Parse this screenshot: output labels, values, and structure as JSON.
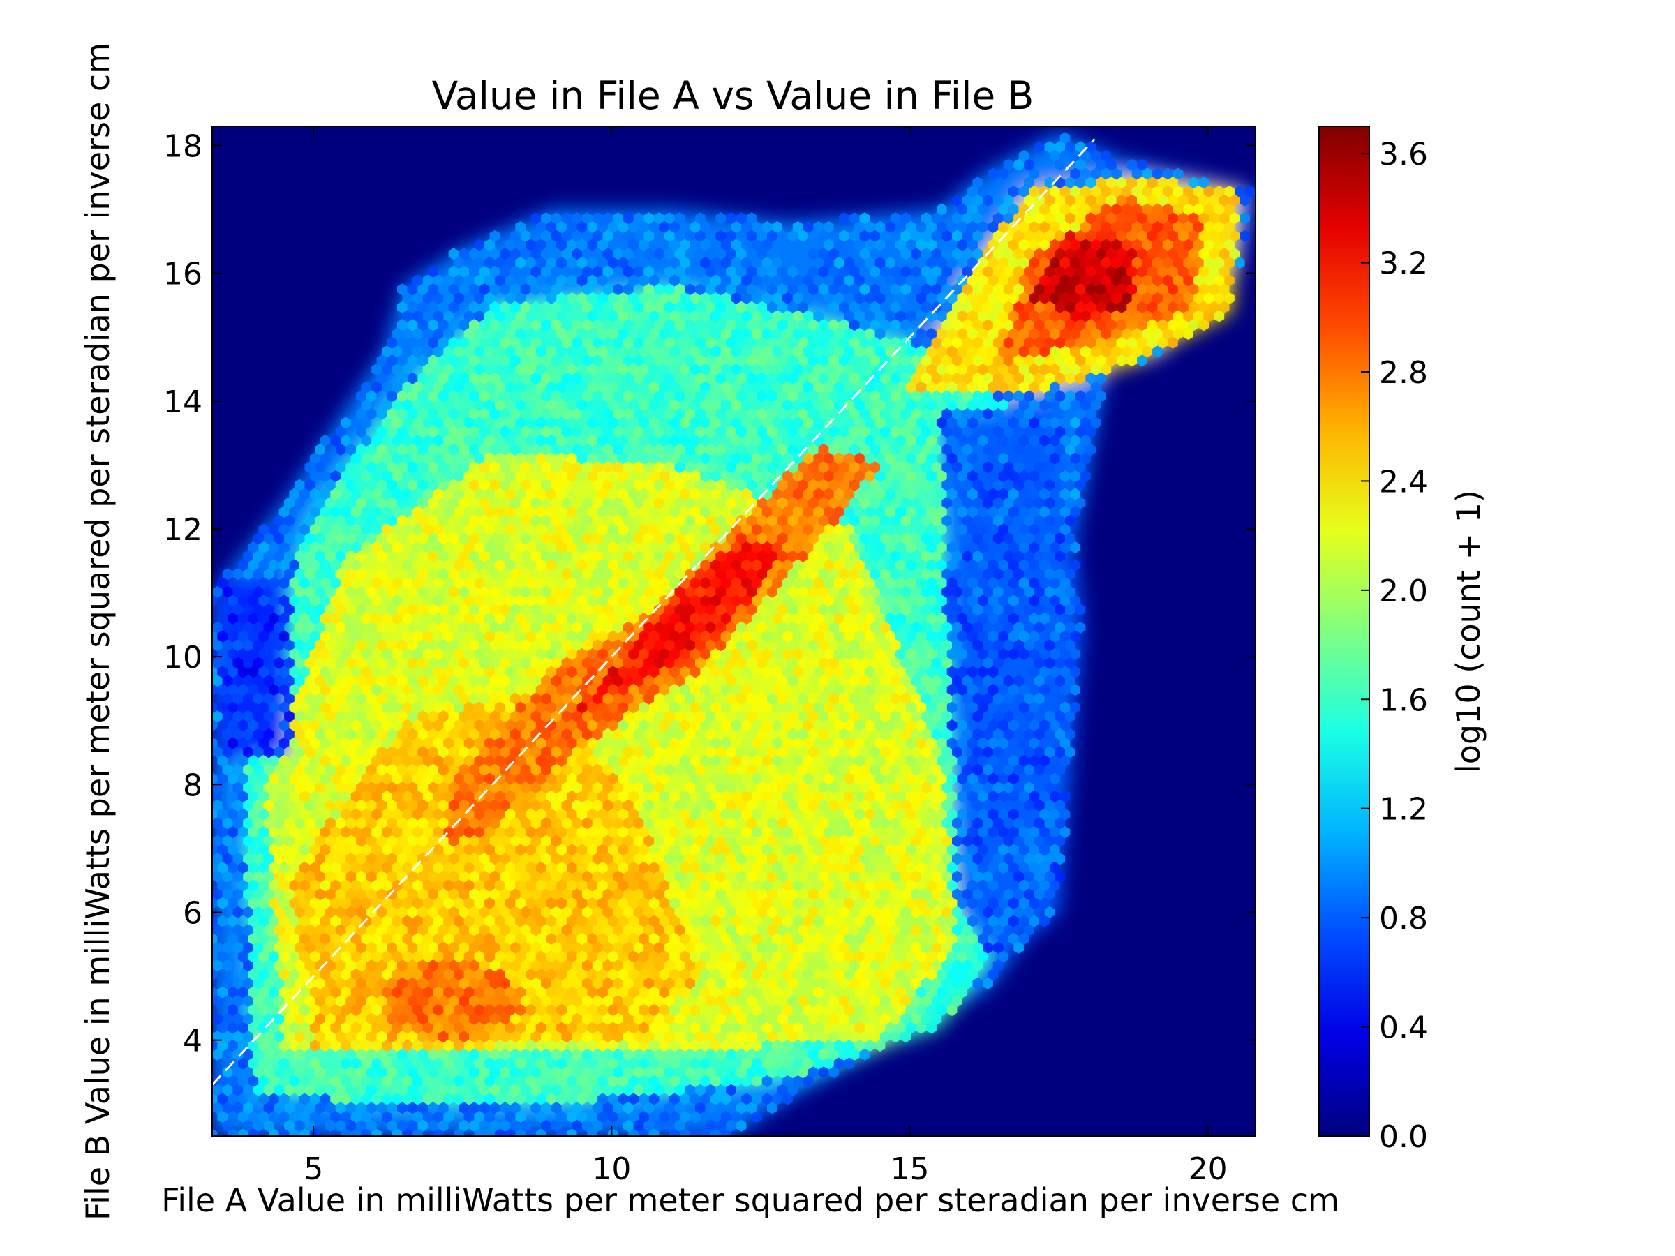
{
  "chart_data": {
    "type": "heatmap",
    "subtype": "hexbin",
    "title": "Value in File A vs Value in File B",
    "xlabel": "File A Value in milliWatts per meter squared per steradian per inverse cm",
    "ylabel": "File B Value in milliWatts per meter squared per steradian per inverse cm",
    "xlim": [
      3.3,
      20.8
    ],
    "ylim": [
      2.5,
      18.3
    ],
    "x_ticks": [
      5,
      10,
      15,
      20
    ],
    "x_tick_labels": [
      "5",
      "10",
      "15",
      "20"
    ],
    "y_ticks": [
      4,
      6,
      8,
      10,
      12,
      14,
      16,
      18
    ],
    "y_tick_labels": [
      "4",
      "6",
      "8",
      "10",
      "12",
      "14",
      "16",
      "18"
    ],
    "background_color": "#00007f",
    "colormap": "jet",
    "colorbar": {
      "label": "log10 (count + 1)",
      "range": [
        0.0,
        3.7
      ],
      "ticks": [
        0.0,
        0.4,
        0.8,
        1.2,
        1.6,
        2.0,
        2.4,
        2.8,
        3.2,
        3.6
      ],
      "tick_labels": [
        "0.0",
        "0.4",
        "0.8",
        "1.2",
        "1.6",
        "2.0",
        "2.4",
        "2.8",
        "3.2",
        "3.6"
      ]
    },
    "reference_line": {
      "type": "y = x",
      "style": "dashed",
      "color": "#ffffff",
      "x_range": [
        3.3,
        18.1
      ]
    },
    "density_regions": [
      {
        "region": "overall data footprint",
        "polygon": [
          [
            3.3,
            2.5
          ],
          [
            3.3,
            11.0
          ],
          [
            4.5,
            12.4
          ],
          [
            6.2,
            14.8
          ],
          [
            6.5,
            15.8
          ],
          [
            7.5,
            16.4
          ],
          [
            9.0,
            17.0
          ],
          [
            11.0,
            17.0
          ],
          [
            13.0,
            16.8
          ],
          [
            15.5,
            17.0
          ],
          [
            16.3,
            17.6
          ],
          [
            17.5,
            18.2
          ],
          [
            18.5,
            17.8
          ],
          [
            20.8,
            17.3
          ],
          [
            20.5,
            16.0
          ],
          [
            19.2,
            14.7
          ],
          [
            18.3,
            14.5
          ],
          [
            17.8,
            12.0
          ],
          [
            17.6,
            8.5
          ],
          [
            17.3,
            6.0
          ],
          [
            16.3,
            4.8
          ],
          [
            13.0,
            3.1
          ],
          [
            12.0,
            2.5
          ]
        ],
        "log10_count": 0.9
      },
      {
        "region": "broad background",
        "polygon": [
          [
            4.0,
            3.2
          ],
          [
            3.8,
            9.0
          ],
          [
            5.0,
            12.2
          ],
          [
            6.5,
            14.2
          ],
          [
            8.0,
            15.5
          ],
          [
            11.0,
            15.8
          ],
          [
            13.5,
            15.3
          ],
          [
            15.5,
            14.8
          ],
          [
            17.2,
            13.5
          ],
          [
            17.0,
            8.0
          ],
          [
            16.5,
            5.5
          ],
          [
            15.5,
            4.2
          ],
          [
            13.0,
            3.4
          ],
          [
            9.0,
            3.0
          ],
          [
            6.0,
            3.0
          ]
        ],
        "log10_count": 1.6
      },
      {
        "region": "main yellow mass",
        "polygon": [
          [
            4.5,
            3.8
          ],
          [
            4.2,
            8.0
          ],
          [
            5.5,
            11.5
          ],
          [
            8.0,
            13.2
          ],
          [
            11.0,
            13.0
          ],
          [
            14.0,
            12.0
          ],
          [
            15.5,
            8.5
          ],
          [
            15.8,
            5.5
          ],
          [
            14.5,
            4.0
          ],
          [
            10.0,
            3.8
          ],
          [
            7.0,
            3.8
          ]
        ],
        "log10_count": 2.2
      },
      {
        "region": "lower-left yellow band",
        "polygon": [
          [
            5.0,
            3.9
          ],
          [
            4.6,
            6.5
          ],
          [
            6.5,
            9.0
          ],
          [
            9.0,
            9.5
          ],
          [
            10.5,
            7.5
          ],
          [
            11.5,
            5.0
          ],
          [
            10.5,
            4.0
          ],
          [
            7.5,
            3.9
          ]
        ],
        "log10_count": 2.5
      },
      {
        "region": "lower-left cluster",
        "polygon": [
          [
            6.3,
            4.1
          ],
          [
            6.1,
            4.9
          ],
          [
            7.0,
            5.3
          ],
          [
            8.2,
            5.1
          ],
          [
            8.6,
            4.5
          ],
          [
            7.8,
            4.0
          ]
        ],
        "log10_count": 2.8
      },
      {
        "region": "upper-right band",
        "polygon": [
          [
            15.0,
            14.2
          ],
          [
            16.0,
            16.0
          ],
          [
            17.0,
            17.3
          ],
          [
            18.8,
            17.5
          ],
          [
            20.5,
            17.3
          ],
          [
            20.4,
            15.4
          ],
          [
            18.8,
            14.6
          ],
          [
            17.0,
            14.1
          ]
        ],
        "log10_count": 2.4
      },
      {
        "region": "upper-right orange",
        "polygon": [
          [
            16.5,
            14.6
          ],
          [
            17.0,
            16.2
          ],
          [
            18.5,
            17.2
          ],
          [
            19.9,
            16.9
          ],
          [
            19.8,
            15.5
          ],
          [
            18.5,
            15.0
          ]
        ],
        "log10_count": 2.9
      },
      {
        "region": "upper-right peak",
        "polygon": [
          [
            17.0,
            15.6
          ],
          [
            17.7,
            16.6
          ],
          [
            18.8,
            16.4
          ],
          [
            18.8,
            15.5
          ],
          [
            17.8,
            15.3
          ]
        ],
        "log10_count": 3.4
      },
      {
        "region": "diagonal ridge",
        "polygon": [
          [
            7.2,
            7.0
          ],
          [
            7.3,
            8.0
          ],
          [
            9.0,
            9.8
          ],
          [
            10.8,
            10.8
          ],
          [
            12.2,
            12.2
          ],
          [
            13.5,
            13.3
          ],
          [
            14.5,
            13.0
          ],
          [
            13.0,
            11.3
          ],
          [
            11.5,
            9.8
          ],
          [
            9.5,
            8.6
          ],
          [
            8.0,
            7.3
          ]
        ],
        "log10_count": 2.8
      },
      {
        "region": "diagonal ridge core",
        "polygon": [
          [
            9.5,
            9.2
          ],
          [
            11.0,
            10.9
          ],
          [
            12.2,
            11.9
          ],
          [
            12.9,
            11.6
          ],
          [
            11.8,
            10.3
          ],
          [
            10.3,
            9.5
          ]
        ],
        "log10_count": 3.2
      },
      {
        "region": "left blue patch",
        "polygon": [
          [
            3.4,
            8.4
          ],
          [
            3.4,
            11.2
          ],
          [
            4.6,
            11.3
          ],
          [
            4.6,
            8.4
          ]
        ],
        "log10_count": 0.6
      },
      {
        "region": "right blue strip",
        "polygon": [
          [
            15.5,
            13.8
          ],
          [
            17.5,
            14.0
          ],
          [
            17.9,
            10.5
          ],
          [
            17.5,
            6.0
          ],
          [
            16.5,
            5.2
          ],
          [
            15.8,
            6.0
          ]
        ],
        "log10_count": 0.8
      }
    ]
  }
}
